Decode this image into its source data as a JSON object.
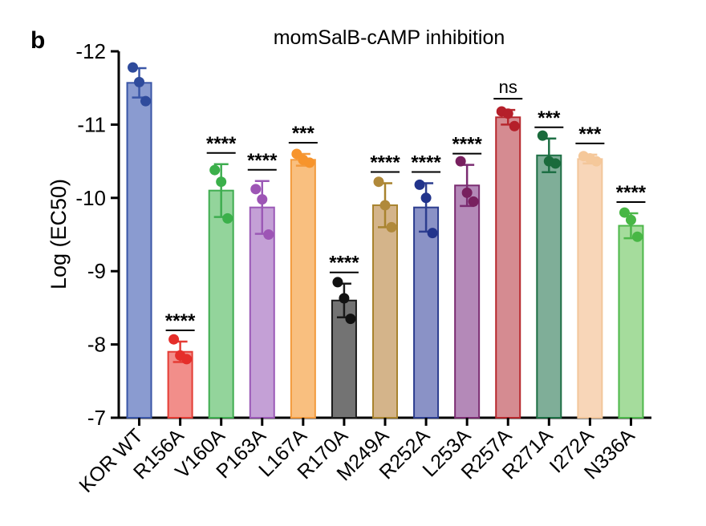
{
  "panel_label": "b",
  "chart_data": {
    "type": "bar",
    "title": "momSalB-cAMP inhibition",
    "ylabel": "Log (EC50)",
    "xlabel": "",
    "ylim": [
      -7,
      -12
    ],
    "yaxis_inverted": true,
    "yticks": [
      "-12",
      "-11",
      "-10",
      "-9",
      "-8",
      "-7"
    ],
    "ytick_values": [
      -12,
      -11,
      -10,
      -9,
      -8,
      -7
    ],
    "grid": false,
    "categories": [
      "KOR WT",
      "R156A",
      "V160A",
      "P163A",
      "L167A",
      "R170A",
      "M249A",
      "R252A",
      "L253A",
      "R257A",
      "R271A",
      "I272A",
      "N336A"
    ],
    "values": [
      -11.57,
      -7.9,
      -10.1,
      -9.87,
      -10.52,
      -8.6,
      -9.9,
      -9.87,
      -10.17,
      -11.1,
      -10.58,
      -10.53,
      -9.62
    ],
    "error": [
      0.2,
      0.14,
      0.36,
      0.36,
      0.08,
      0.23,
      0.3,
      0.33,
      0.28,
      0.1,
      0.23,
      0.06,
      0.17
    ],
    "points": [
      [
        -11.78,
        -11.58,
        -11.32
      ],
      [
        -8.07,
        -7.85,
        -7.8
      ],
      [
        -10.38,
        -10.22,
        -9.72
      ],
      [
        -10.12,
        -9.98,
        -9.5
      ],
      [
        -10.6,
        -10.52,
        -10.48
      ],
      [
        -8.85,
        -8.63,
        -8.35
      ],
      [
        -10.22,
        -9.9,
        -9.6
      ],
      [
        -10.18,
        -10.0,
        -9.52
      ],
      [
        -10.5,
        -10.07,
        -9.95
      ],
      [
        -11.18,
        -11.15,
        -10.98
      ],
      [
        -10.85,
        -10.5,
        -10.47
      ],
      [
        -10.57,
        -10.54,
        -10.5
      ],
      [
        -9.8,
        -9.7,
        -9.47
      ]
    ],
    "significance": [
      "",
      "****",
      "****",
      "****",
      "***",
      "****",
      "****",
      "****",
      "****",
      "ns",
      "***",
      "***",
      "****"
    ],
    "colors": {
      "fill": [
        "#8a9bd0",
        "#f28e8a",
        "#93d49b",
        "#c4a0d6",
        "#f9bf7f",
        "#737373",
        "#d4b48a",
        "#8a92c6",
        "#b489b8",
        "#d58b91",
        "#7fae98",
        "#f8d6b8",
        "#a5dc9c"
      ],
      "edge": [
        "#3a56a7",
        "#e43c35",
        "#3fad50",
        "#9b59b6",
        "#f39a3d",
        "#1a1a1a",
        "#a8832e",
        "#2c3d8f",
        "#7b2d72",
        "#b7282e",
        "#1d6f44",
        "#f3c69a",
        "#4db74a"
      ],
      "point": [
        "#2f4b9c",
        "#e52e2a",
        "#3bb04a",
        "#9d55b5",
        "#f7942c",
        "#111111",
        "#b0893a",
        "#22348c",
        "#78205f",
        "#b51f2a",
        "#1a6b3c",
        "#f5c89a",
        "#48b745"
      ]
    }
  }
}
